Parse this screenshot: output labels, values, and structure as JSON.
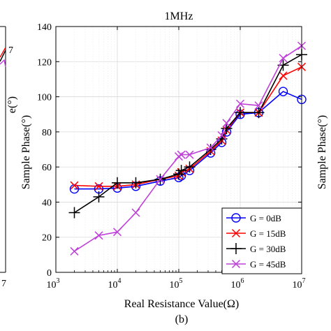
{
  "chart_data": {
    "type": "line",
    "title": "1MHz",
    "xlabel": "Real Resistance Value(Ω)",
    "ylabel": "Sample Phase(°)",
    "subcaption": "(b)",
    "x_scale": "log",
    "xlim": [
      1000,
      10000000
    ],
    "ylim": [
      0,
      140
    ],
    "x_ticks": [
      {
        "value": 1000,
        "base": "10",
        "exp": "3"
      },
      {
        "value": 10000,
        "base": "10",
        "exp": "4"
      },
      {
        "value": 100000,
        "base": "10",
        "exp": "5"
      },
      {
        "value": 1000000,
        "base": "10",
        "exp": "6"
      },
      {
        "value": 10000000,
        "base": "10",
        "exp": "7"
      }
    ],
    "y_ticks": [
      0,
      20,
      40,
      60,
      80,
      100,
      120,
      140
    ],
    "grid": true,
    "legend_position": "bottom-right",
    "x": [
      2000,
      5000,
      10000,
      20000,
      50000,
      100000,
      110000,
      150000,
      330000,
      500000,
      600000,
      1000000,
      2000000,
      5000000,
      10000000
    ],
    "series": [
      {
        "name": "G = 0dB",
        "color": "#0000ff",
        "marker": "circle",
        "values": [
          47.5,
          47.5,
          48,
          49,
          52,
          54,
          55,
          58,
          68,
          74,
          80,
          90,
          91,
          103,
          98.5
        ]
      },
      {
        "name": "G = 15dB",
        "color": "#ff0000",
        "marker": "x",
        "values": [
          49.5,
          49,
          49,
          50,
          53,
          55,
          57,
          59,
          69,
          75,
          81,
          91,
          91,
          112,
          117
        ]
      },
      {
        "name": "G = 30dB",
        "color": "#000000",
        "marker": "plus",
        "values": [
          34,
          43,
          51,
          51,
          53,
          56,
          58,
          60,
          70,
          76,
          82,
          91,
          91,
          118,
          124
        ]
      },
      {
        "name": "G = 45dB",
        "color": "#bf40d8",
        "marker": "x",
        "values": [
          12,
          21,
          23,
          34,
          53,
          66,
          67,
          67,
          71,
          78,
          85,
          96,
          95,
          122,
          129
        ]
      }
    ],
    "left_partial_panel": {
      "ylabel_fragment": "e(°)",
      "tick_fragments": [
        "7",
        "7"
      ],
      "series_colors": [
        "#000000",
        "#ff0000",
        "#bf40d8"
      ]
    },
    "right_partial_panel": {
      "ylabel": "Sample Phase(°)"
    }
  }
}
